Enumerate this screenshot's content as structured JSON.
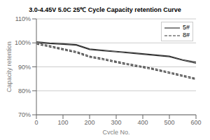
{
  "chart_data": {
    "type": "line",
    "title": "3.0-4.45V 5.0C 25℃ Cycle Capacity retention Curve",
    "x_label": "Cycle No.",
    "y_label": "Capacity retention",
    "x": [
      0,
      50,
      100,
      150,
      200,
      250,
      300,
      350,
      400,
      450,
      500,
      550,
      600
    ],
    "series": [
      {
        "name": "5#",
        "color": "#333333",
        "line_style": "solid",
        "values": [
          1.005,
          1.0,
          0.997,
          0.993,
          0.975,
          0.97,
          0.965,
          0.96,
          0.955,
          0.95,
          0.945,
          0.93,
          0.92
        ]
      },
      {
        "color": "#333333",
        "line_style": "solid",
        "values": [
          1.0,
          0.997,
          0.994,
          0.99,
          0.972,
          0.967,
          0.962,
          0.957,
          0.952,
          0.947,
          0.942,
          0.927,
          0.915
        ]
      },
      {
        "name": "8#",
        "color": "#333333",
        "line_style": "dashed",
        "values": [
          1.0,
          0.988,
          0.976,
          0.964,
          0.945,
          0.935,
          0.923,
          0.912,
          0.902,
          0.891,
          0.878,
          0.865,
          0.852
        ]
      },
      {
        "color": "#333333",
        "line_style": "dashed",
        "values": [
          0.995,
          0.983,
          0.971,
          0.959,
          0.94,
          0.93,
          0.918,
          0.907,
          0.897,
          0.886,
          0.873,
          0.86,
          0.847
        ]
      }
    ],
    "xlim": [
      0,
      600
    ],
    "xticks": [
      0,
      100,
      200,
      300,
      400,
      500,
      600
    ],
    "ylim": [
      0.7,
      1.1
    ],
    "yticks": [
      {
        "value": 0.7,
        "label": "70%"
      },
      {
        "value": 0.8,
        "label": "80%"
      },
      {
        "value": 0.9,
        "label": "90%"
      },
      {
        "value": 1.0,
        "label": "100%"
      },
      {
        "value": 1.1,
        "label": "110%"
      }
    ],
    "grid": "y",
    "legend": "upper right"
  }
}
